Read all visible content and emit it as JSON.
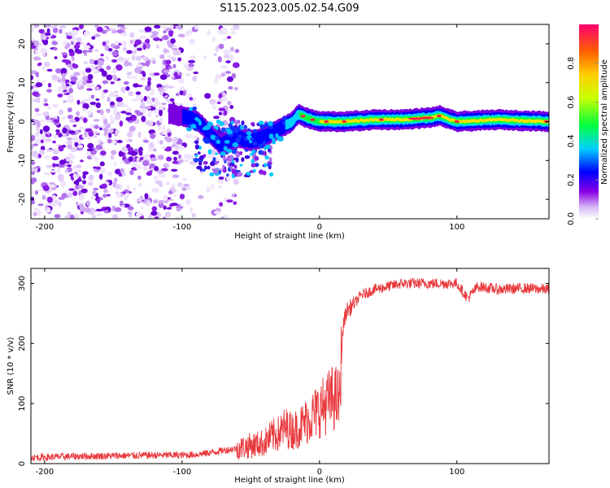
{
  "title": "S115.2023.005.02.54.G09",
  "chart_data": [
    {
      "type": "heatmap",
      "xlabel": "Height of straight line (km)",
      "ylabel": "Frequency (Hz)",
      "xlim": [
        -210,
        167
      ],
      "ylim": [
        -25,
        25
      ],
      "xticks": [
        -200,
        -100,
        0,
        100
      ],
      "yticks": [
        -20,
        -10,
        0,
        10,
        20
      ],
      "colorbar": {
        "label": "Normalized spectral amplitude",
        "range": [
          0.0,
          1.0
        ],
        "ticks": [
          "0.0",
          "0.2",
          "0.4",
          "0.6",
          "0.8"
        ],
        "colors": [
          "#ffffff",
          "#c9a6f5",
          "#7a00e0",
          "#0000ff",
          "#00e5ff",
          "#00ff00",
          "#ffff00",
          "#ff8000",
          "#ff0060"
        ]
      },
      "ridge": [
        {
          "x": -110,
          "y": 2
        },
        {
          "x": -95,
          "y": 1
        },
        {
          "x": -88,
          "y": 0
        },
        {
          "x": -80,
          "y": -3
        },
        {
          "x": -72,
          "y": -6
        },
        {
          "x": -60,
          "y": -4
        },
        {
          "x": -50,
          "y": -5
        },
        {
          "x": -40,
          "y": -4
        },
        {
          "x": -30,
          "y": -2
        },
        {
          "x": -20,
          "y": 0
        },
        {
          "x": -15,
          "y": 2
        },
        {
          "x": -10,
          "y": 1
        },
        {
          "x": 0,
          "y": 0
        },
        {
          "x": 20,
          "y": 0
        },
        {
          "x": 40,
          "y": 0.5
        },
        {
          "x": 60,
          "y": 0.5
        },
        {
          "x": 80,
          "y": 1
        },
        {
          "x": 88,
          "y": 1.5
        },
        {
          "x": 95,
          "y": 0.5
        },
        {
          "x": 100,
          "y": 0
        },
        {
          "x": 130,
          "y": 0.5
        },
        {
          "x": 167,
          "y": 0
        }
      ]
    },
    {
      "type": "line",
      "xlabel": "Height of straight line (km)",
      "ylabel": "SNR (10 * v/v)",
      "xlim": [
        -210,
        167
      ],
      "ylim": [
        0,
        325
      ],
      "xticks": [
        -200,
        -100,
        0,
        100
      ],
      "yticks": [
        0,
        100,
        200,
        300
      ],
      "color": "#e8383c",
      "series": [
        {
          "x": [
            -210,
            -180,
            -150,
            -120,
            -100,
            -90,
            -80,
            -70,
            -60,
            -50,
            -40,
            -35,
            -30,
            -25,
            -20,
            -15,
            -10,
            -5,
            0,
            5,
            10,
            15,
            16,
            17,
            18,
            20,
            25,
            30,
            40,
            50,
            60,
            80,
            100,
            108,
            115,
            130,
            150,
            167
          ],
          "values": [
            10,
            12,
            13,
            14,
            14,
            15,
            18,
            22,
            25,
            30,
            35,
            45,
            50,
            60,
            55,
            60,
            70,
            80,
            90,
            100,
            110,
            105,
            180,
            220,
            240,
            255,
            265,
            280,
            290,
            295,
            300,
            300,
            300,
            275,
            295,
            290,
            292,
            290
          ]
        }
      ]
    }
  ]
}
